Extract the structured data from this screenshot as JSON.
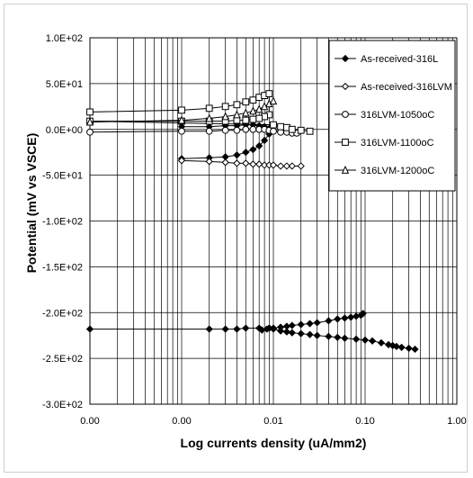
{
  "chart_data": {
    "type": "scatter",
    "title": "",
    "xlabel": "Log currents density (uA/mm2)",
    "ylabel": "Potential (mV vs VSCE)",
    "x_scale": "log",
    "x_range": [
      0.0001,
      1
    ],
    "x_tick_labels": [
      "0.00",
      "0.00",
      "0.01",
      "0.10",
      "1.00"
    ],
    "y_range": [
      -300,
      100
    ],
    "y_ticks": [
      100,
      50,
      0,
      -50,
      -100,
      -150,
      -200,
      -250,
      -300
    ],
    "y_tick_labels": [
      "1.0E+02",
      "5.0E+01",
      "0.0E+00",
      "-5.0E+01",
      "-1.0E+02",
      "-1.5E+02",
      "-2.0E+02",
      "-2.5E+02",
      "-3.0E+02"
    ],
    "grid": true,
    "legend_position": "top-right",
    "series": [
      {
        "name": "As-received-316L",
        "marker": "diamond-filled",
        "color": "#000000",
        "x": [
          0.001,
          0.002,
          0.003,
          0.004,
          0.005,
          0.006,
          0.007,
          0.008,
          0.009,
          0.009,
          0.008,
          0.007,
          0.006,
          0.005,
          0.004,
          0.003,
          0.002,
          0.001
        ],
        "y": [
          -32,
          -31,
          -30,
          -28,
          -25,
          -22,
          -18,
          -12,
          -5,
          1,
          3,
          4,
          5,
          5,
          4,
          4,
          3,
          3
        ]
      },
      {
        "name": "As-received-316LVM",
        "marker": "diamond-open",
        "color": "#000000",
        "x": [
          0.001,
          0.002,
          0.003,
          0.004,
          0.005,
          0.006,
          0.007,
          0.008,
          0.009,
          0.01,
          0.012,
          0.014,
          0.016,
          0.02
        ],
        "y": [
          -34,
          -35,
          -36,
          -37,
          -37,
          -38,
          -38,
          -39,
          -39,
          -39,
          -40,
          -40,
          -40,
          -40
        ]
      },
      {
        "name": "316LVM-1050oC",
        "marker": "circle-open",
        "color": "#000000",
        "x": [
          0.0001,
          0.001,
          0.002,
          0.003,
          0.004,
          0.005,
          0.006,
          0.007,
          0.008,
          0.009,
          0.01,
          0.012,
          0.014,
          0.016,
          0.018
        ],
        "y": [
          -3,
          -2,
          -2,
          -1,
          -1,
          0,
          0,
          0,
          0,
          -1,
          -2,
          -3,
          -3,
          -4,
          -4
        ]
      },
      {
        "name": "316LVM-1100oC",
        "marker": "square-open",
        "color": "#000000",
        "x": [
          0.0001,
          0.001,
          0.002,
          0.003,
          0.004,
          0.005,
          0.006,
          0.007,
          0.008,
          0.009,
          0.009,
          0.008,
          0.007,
          0.006,
          0.005,
          0.004,
          0.003,
          0.002,
          0.001,
          0.0001,
          0.01,
          0.012,
          0.014,
          0.016,
          0.02,
          0.025
        ],
        "y": [
          19,
          21,
          23,
          25,
          27,
          30,
          32,
          35,
          37,
          39,
          16,
          14,
          12,
          11,
          10,
          10,
          9,
          9,
          9,
          9,
          5,
          3,
          2,
          0,
          -1,
          -2
        ]
      },
      {
        "name": "316LVM-1200oC",
        "marker": "triangle-open",
        "color": "#000000",
        "x": [
          0.0001,
          0.001,
          0.002,
          0.003,
          0.004,
          0.005,
          0.006,
          0.007,
          0.008,
          0.009,
          0.01
        ],
        "y": [
          8,
          10,
          12,
          14,
          16,
          18,
          20,
          22,
          25,
          28,
          31
        ]
      },
      {
        "name": "",
        "marker": "diamond-filled",
        "color": "#000000",
        "x": [
          0.0001,
          0.002,
          0.003,
          0.004,
          0.005,
          0.007,
          0.0075,
          0.0085,
          0.009,
          0.01,
          0.012,
          0.014,
          0.016,
          0.02,
          0.025,
          0.03,
          0.04,
          0.05,
          0.06,
          0.07,
          0.08,
          0.09,
          0.095
        ],
        "y": [
          -218,
          -218,
          -218,
          -218,
          -217,
          -217,
          -219,
          -218,
          -217,
          -217,
          -216,
          -215,
          -214,
          -213,
          -212,
          -211,
          -209,
          -207,
          -206,
          -205,
          -204,
          -203,
          -201
        ]
      },
      {
        "name": "",
        "marker": "diamond-filled",
        "color": "#000000",
        "x": [
          0.009,
          0.01,
          0.012,
          0.014,
          0.016,
          0.02,
          0.025,
          0.03,
          0.04,
          0.05,
          0.06,
          0.08,
          0.1,
          0.12,
          0.15,
          0.18,
          0.2,
          0.22,
          0.25,
          0.3,
          0.35
        ],
        "y": [
          -217,
          -218,
          -220,
          -221,
          -222,
          -223,
          -224,
          -225,
          -226,
          -227,
          -228,
          -229,
          -230,
          -231,
          -233,
          -235,
          -236,
          -237,
          -238,
          -239,
          -240
        ]
      }
    ]
  }
}
